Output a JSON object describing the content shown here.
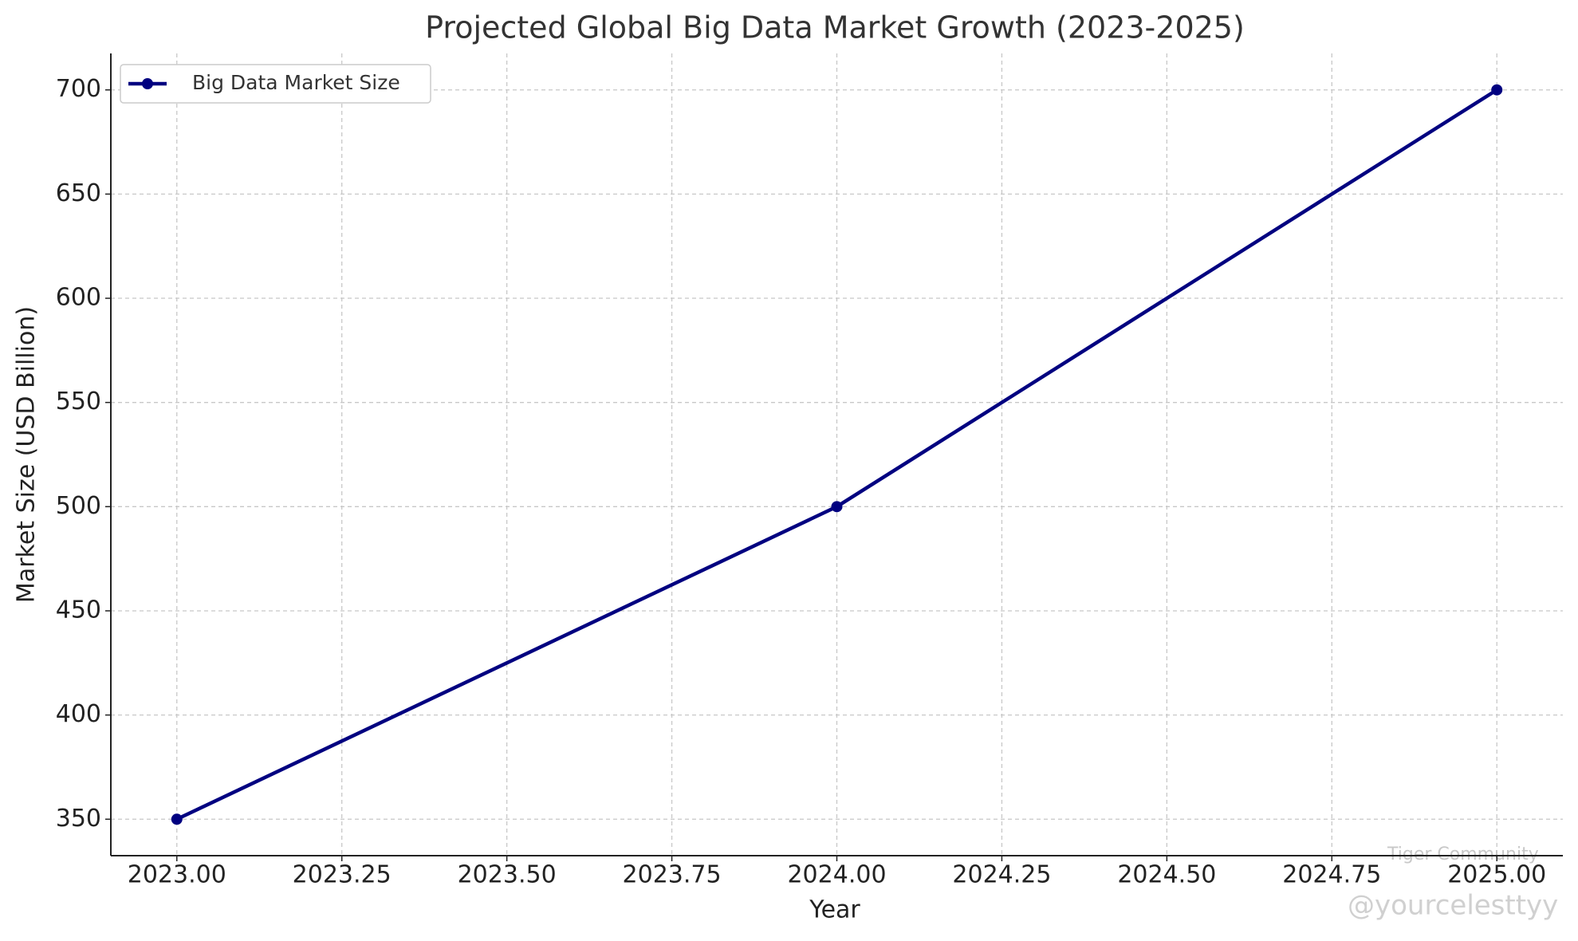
{
  "chart_data": {
    "type": "line",
    "title": "Projected Global Big Data Market Growth (2023-2025)",
    "x_label": "Year",
    "y_label": "Market Size (USD Billion)",
    "x": [
      2023,
      2024,
      2025
    ],
    "series": [
      {
        "name": "Big Data Market Size",
        "color": "#000080",
        "values": [
          350,
          500,
          700
        ]
      }
    ],
    "xlim": [
      2022.9,
      2025.1
    ],
    "xticks": [
      {
        "value": 2023,
        "label": "2023.00"
      },
      {
        "value": 2023.25,
        "label": "2023.25"
      },
      {
        "value": 2023.5,
        "label": "2023.50"
      },
      {
        "value": 2023.75,
        "label": "2023.75"
      },
      {
        "value": 2024,
        "label": "2024.00"
      },
      {
        "value": 2024.25,
        "label": "2024.25"
      },
      {
        "value": 2024.5,
        "label": "2024.50"
      },
      {
        "value": 2024.75,
        "label": "2024.75"
      },
      {
        "value": 2025,
        "label": "2025.00"
      }
    ],
    "ylim": [
      332.5,
      717.5
    ],
    "yticks": [
      350,
      400,
      450,
      500,
      550,
      600,
      650,
      700
    ],
    "grid": true,
    "legend": "upper left",
    "watermark": [
      "Tiger Community",
      "@yourcelesttyy"
    ]
  }
}
